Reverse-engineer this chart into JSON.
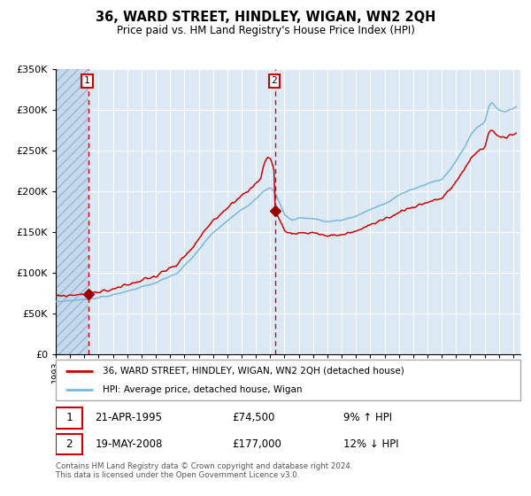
{
  "title": "36, WARD STREET, HINDLEY, WIGAN, WN2 2QH",
  "subtitle": "Price paid vs. HM Land Registry's House Price Index (HPI)",
  "legend_property": "36, WARD STREET, HINDLEY, WIGAN, WN2 2QH (detached house)",
  "legend_hpi": "HPI: Average price, detached house, Wigan",
  "purchase1_date": "21-APR-1995",
  "purchase1_price": 74500,
  "purchase1_hpi_pct": "9% ↑ HPI",
  "purchase2_date": "19-MAY-2008",
  "purchase2_price": 177000,
  "purchase2_hpi_pct": "12% ↓ HPI",
  "purchase1_year": 1995.3,
  "purchase2_year": 2008.38,
  "footer": "Contains HM Land Registry data © Crown copyright and database right 2024.\nThis data is licensed under the Open Government Licence v3.0.",
  "hpi_color": "#7ab8d9",
  "property_color": "#cc0000",
  "dashed_color": "#cc0000",
  "marker_color": "#990000",
  "background_plot": "#dce9f5",
  "background_hatch": "#c5d8ee",
  "grid_color": "#ffffff",
  "ylim_max": 350000,
  "ylim_min": 0,
  "xlim_min": 1993,
  "xlim_max": 2025.5
}
